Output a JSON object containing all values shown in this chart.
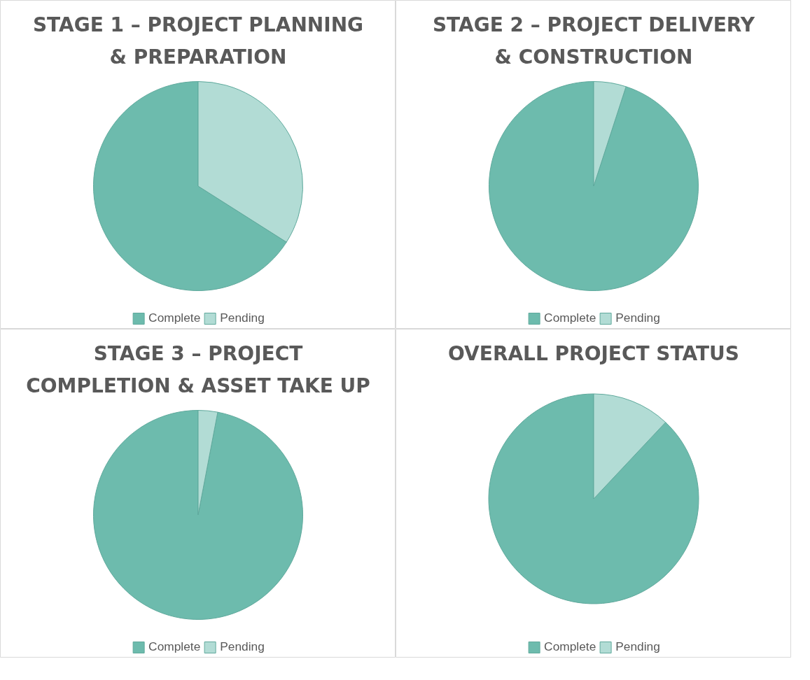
{
  "chart_data": [
    {
      "type": "pie",
      "title": "STAGE 1 – PROJECT PLANNING & PREPARATION",
      "categories": [
        "Complete",
        "Pending"
      ],
      "values": [
        66,
        34
      ],
      "colors": [
        "#6dbbad",
        "#b2dcd5"
      ],
      "legend": "bottom"
    },
    {
      "type": "pie",
      "title": "STAGE 2 – PROJECT DELIVERY & CONSTRUCTION",
      "categories": [
        "Complete",
        "Pending"
      ],
      "values": [
        95,
        5
      ],
      "colors": [
        "#6dbbad",
        "#b2dcd5"
      ],
      "legend": "bottom"
    },
    {
      "type": "pie",
      "title": "STAGE 3 – PROJECT COMPLETION & ASSET TAKE UP",
      "categories": [
        "Complete",
        "Pending"
      ],
      "values": [
        97,
        3
      ],
      "colors": [
        "#6dbbad",
        "#b2dcd5"
      ],
      "legend": "bottom"
    },
    {
      "type": "pie",
      "title": "OVERALL PROJECT STATUS",
      "categories": [
        "Complete",
        "Pending"
      ],
      "values": [
        88,
        12
      ],
      "colors": [
        "#6dbbad",
        "#b2dcd5"
      ],
      "legend": "bottom"
    }
  ]
}
